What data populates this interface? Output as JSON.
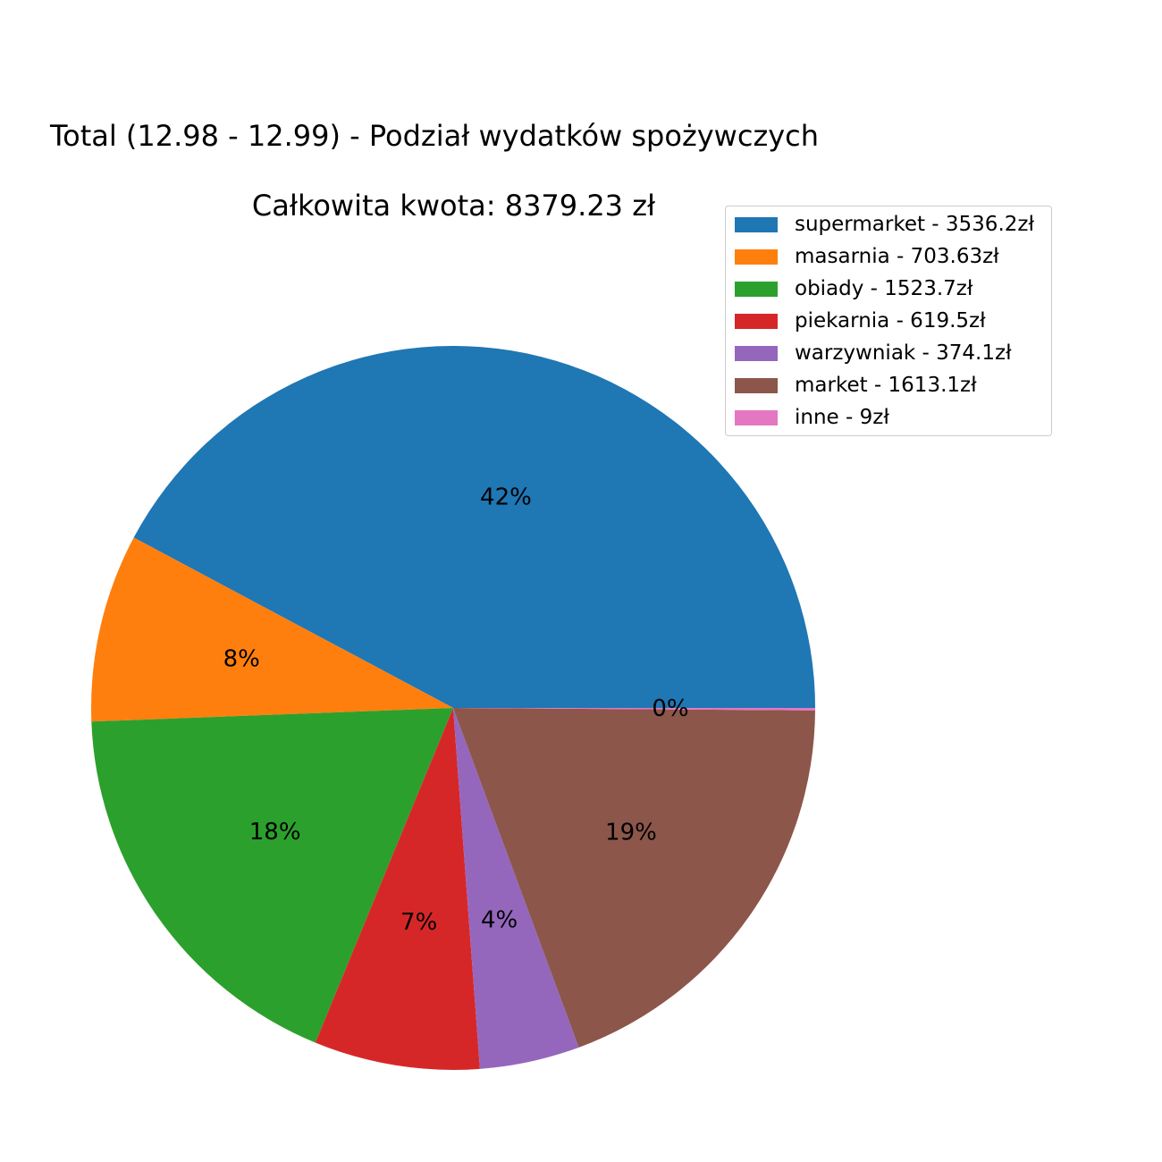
{
  "chart_data": {
    "type": "pie",
    "title": "Total (12.98 - 12.99) - Podział wydatków spożywczych",
    "subtitle": "Całkowita kwota: 8379.23 zł",
    "slices": [
      {
        "name": "supermarket",
        "value": 3536.2,
        "legend_label": "supermarket - 3536.2zł",
        "pct_label": "42%",
        "color": "#1f77b4"
      },
      {
        "name": "masarnia",
        "value": 703.63,
        "legend_label": "masarnia - 703.63zł",
        "pct_label": "8%",
        "color": "#ff7f0e"
      },
      {
        "name": "obiady",
        "value": 1523.7,
        "legend_label": "obiady - 1523.7zł",
        "pct_label": "18%",
        "color": "#2ca02c"
      },
      {
        "name": "piekarnia",
        "value": 619.5,
        "legend_label": "piekarnia - 619.5zł",
        "pct_label": "7%",
        "color": "#d62728"
      },
      {
        "name": "warzywniak",
        "value": 374.1,
        "legend_label": "warzywniak - 374.1zł",
        "pct_label": "4%",
        "color": "#9467bd"
      },
      {
        "name": "market",
        "value": 1613.1,
        "legend_label": "market - 1613.1zł",
        "pct_label": "19%",
        "color": "#8c564b"
      },
      {
        "name": "inne",
        "value": 9,
        "legend_label": "inne - 9zł",
        "pct_label": "0%",
        "color": "#e377c2"
      }
    ],
    "start_angle_deg": 0,
    "direction": "counterclockwise",
    "legend_position": "upper right"
  }
}
